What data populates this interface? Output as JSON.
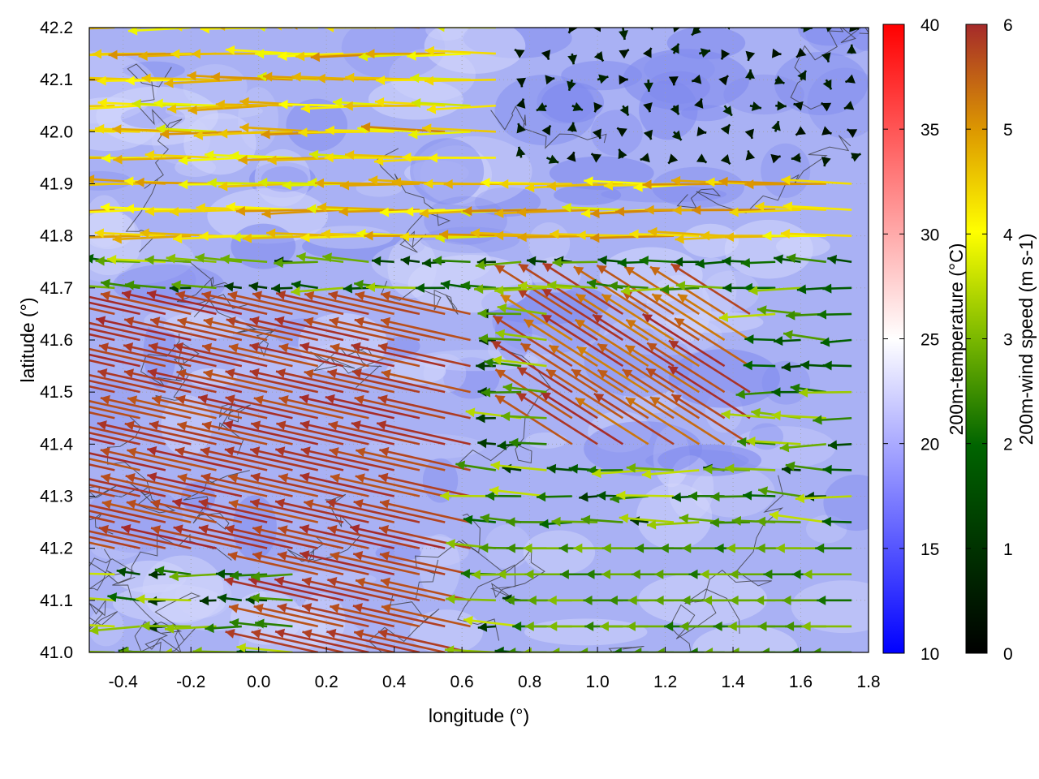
{
  "chart_data": {
    "type": "quiver",
    "xlabel": "longitude (°)",
    "ylabel": "latitude (°)",
    "xlim": [
      -0.5,
      1.8
    ],
    "ylim": [
      41.0,
      42.2
    ],
    "x_ticks": [
      "-0.4",
      "-0.2",
      "0.0",
      "0.2",
      "0.4",
      "0.6",
      "0.8",
      "1.0",
      "1.2",
      "1.4",
      "1.6",
      "1.8"
    ],
    "x_tick_values": [
      -0.4,
      -0.2,
      0.0,
      0.2,
      0.4,
      0.6,
      0.8,
      1.0,
      1.2,
      1.4,
      1.6,
      1.8
    ],
    "y_ticks": [
      "41.0",
      "41.1",
      "41.2",
      "41.3",
      "41.4",
      "41.5",
      "41.6",
      "41.7",
      "41.8",
      "41.9",
      "42.0",
      "42.1",
      "42.2"
    ],
    "y_tick_values": [
      41.0,
      41.1,
      41.2,
      41.3,
      41.4,
      41.5,
      41.6,
      41.7,
      41.8,
      41.9,
      42.0,
      42.1,
      42.2
    ],
    "grid": true,
    "background_field": {
      "name": "200m-temperature",
      "unit_label": "200m-temperature (°C)",
      "range": [
        10,
        40
      ],
      "ticks": [
        "10",
        "15",
        "20",
        "25",
        "30",
        "35",
        "40"
      ],
      "tick_values": [
        10,
        15,
        20,
        25,
        30,
        35,
        40
      ],
      "colors": [
        "#0000ff",
        "#ffffff",
        "#ff0000"
      ],
      "typical_value": 18.5
    },
    "wind_field": {
      "name": "200m-wind speed",
      "unit_label": "200m-wind speed (m s-1)",
      "range": [
        0,
        6
      ],
      "ticks": [
        "0",
        "1",
        "2",
        "3",
        "4",
        "5",
        "6"
      ],
      "tick_values": [
        0,
        1,
        2,
        3,
        4,
        5,
        6
      ],
      "colors": [
        "#000000",
        "#006400",
        "#7ab800",
        "#ffff00",
        "#dd9900",
        "#a52a2a"
      ],
      "regions": [
        {
          "region": "north-west band 41.75-42.2",
          "speed": 4.2,
          "direction": "westward"
        },
        {
          "region": "south-west 41.0-41.7",
          "speed": 6.0,
          "direction": "west-north-west"
        },
        {
          "region": "center 41.4-41.7",
          "speed": 3.0,
          "direction": "westward"
        },
        {
          "region": "east near-calm 41.9-42.2",
          "speed": 0.4,
          "direction": "variable"
        },
        {
          "region": "south-east 41.0-41.2",
          "speed": 2.6,
          "direction": "westward"
        },
        {
          "region": "diagonal front 0.9-1.4",
          "speed": 5.5,
          "direction": "north-west"
        }
      ]
    }
  }
}
